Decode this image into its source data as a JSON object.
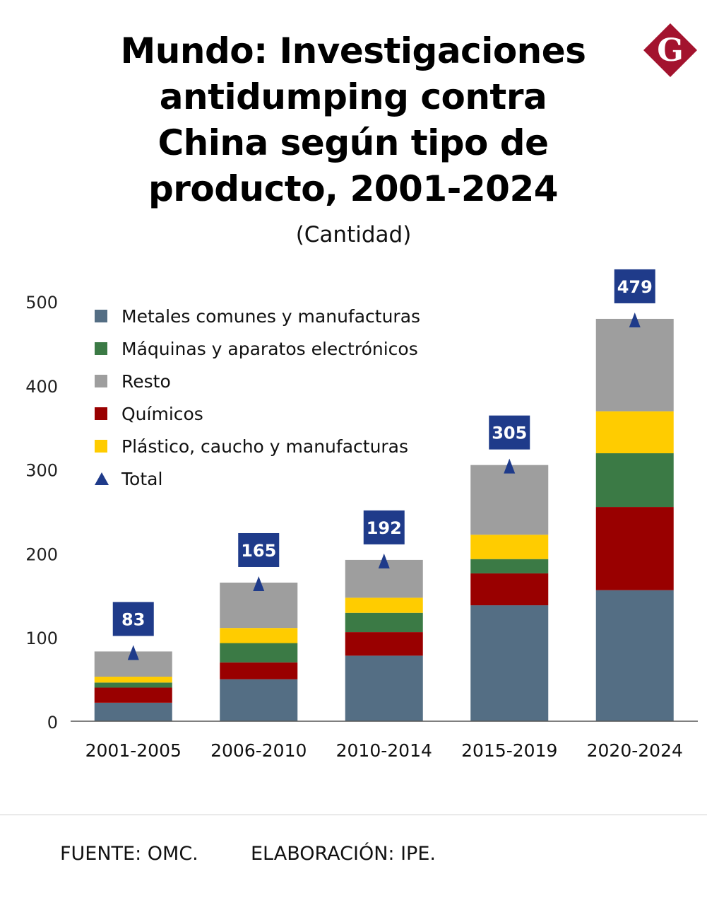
{
  "title": "Mundo: Investigaciones antidumping contra China según tipo de producto, 2001-2024",
  "subtitle": "(Cantidad)",
  "logo_letter": "G",
  "source": "FUENTE: OMC.",
  "credit": "ELABORACIÓN: IPE.",
  "colors": {
    "metales": "#546e84",
    "quimicos": "#990000",
    "maquinas": "#3b7a45",
    "plastico": "#ffcc00",
    "resto": "#9e9e9e",
    "total": "#1f3b8a",
    "logo": "#a3132e"
  },
  "chart_data": {
    "type": "bar",
    "stacked": true,
    "title": "Mundo: Investigaciones antidumping contra China según tipo de producto, 2001-2024",
    "subtitle": "(Cantidad)",
    "categories": [
      "2001-2005",
      "2006-2010",
      "2010-2014",
      "2015-2019",
      "2020-2024"
    ],
    "series": [
      {
        "name": "Metales comunes y manufacturas",
        "key": "metales",
        "values": [
          22,
          50,
          78,
          138,
          156
        ]
      },
      {
        "name": "Químicos",
        "key": "quimicos",
        "values": [
          18,
          20,
          28,
          38,
          99
        ]
      },
      {
        "name": "Máquinas y aparatos electrónicos",
        "key": "maquinas",
        "values": [
          6,
          23,
          23,
          17,
          64
        ]
      },
      {
        "name": "Plástico, caucho y manufacturas",
        "key": "plastico",
        "values": [
          7,
          18,
          18,
          29,
          50
        ]
      },
      {
        "name": "Resto",
        "key": "resto",
        "values": [
          30,
          54,
          45,
          83,
          110
        ]
      }
    ],
    "totals": [
      83,
      165,
      192,
      305,
      479
    ],
    "legend": [
      {
        "label": "Metales comunes y manufacturas",
        "key": "metales",
        "marker": "square"
      },
      {
        "label": "Máquinas y aparatos electrónicos",
        "key": "maquinas",
        "marker": "square"
      },
      {
        "label": "Resto",
        "key": "resto",
        "marker": "square"
      },
      {
        "label": "Químicos",
        "key": "quimicos",
        "marker": "square"
      },
      {
        "label": "Plástico, caucho y manufacturas",
        "key": "plastico",
        "marker": "square"
      },
      {
        "label": "Total",
        "key": "total",
        "marker": "triangle"
      }
    ],
    "legend_position": "top-left",
    "yticks": [
      0,
      100,
      200,
      300,
      400,
      500
    ],
    "ylim": [
      0,
      500
    ],
    "xlabel": "",
    "ylabel": "",
    "grid": false
  }
}
